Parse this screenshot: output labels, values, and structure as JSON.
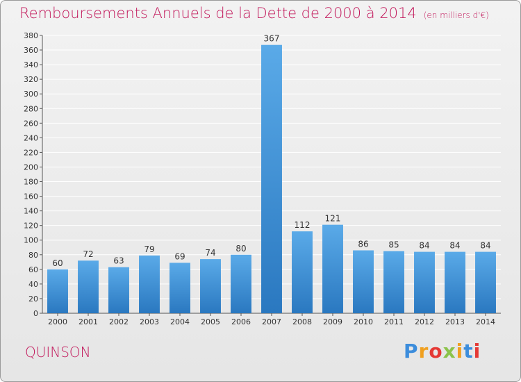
{
  "header": {
    "title": "Remboursements Annuels de la Dette de 2000 à 2014",
    "unit": "(en milliers d'€)"
  },
  "footer": {
    "commune": "QUINSON",
    "brand": "Proxiti",
    "brand_letters": [
      "P",
      "r",
      "o",
      "x",
      "i",
      "t",
      "i"
    ]
  },
  "colors": {
    "title": "#c2185b",
    "bar_top": "#5aaae8",
    "bar_bottom": "#2a78c0",
    "grid": "#ffffff",
    "axis": "#555555"
  },
  "chart_data": {
    "type": "bar",
    "title": "Remboursements Annuels de la Dette de 2000 à 2014",
    "subtitle": "(en milliers d'€)",
    "xlabel": "",
    "ylabel": "",
    "categories": [
      "2000",
      "2001",
      "2002",
      "2003",
      "2004",
      "2005",
      "2006",
      "2007",
      "2008",
      "2009",
      "2010",
      "2011",
      "2012",
      "2013",
      "2014"
    ],
    "values": [
      60,
      72,
      63,
      79,
      69,
      74,
      80,
      367,
      112,
      121,
      86,
      85,
      84,
      84,
      84
    ],
    "ylim": [
      0,
      380
    ],
    "ytick_step": 20,
    "grid": true,
    "legend": "none",
    "data_labels": true
  }
}
